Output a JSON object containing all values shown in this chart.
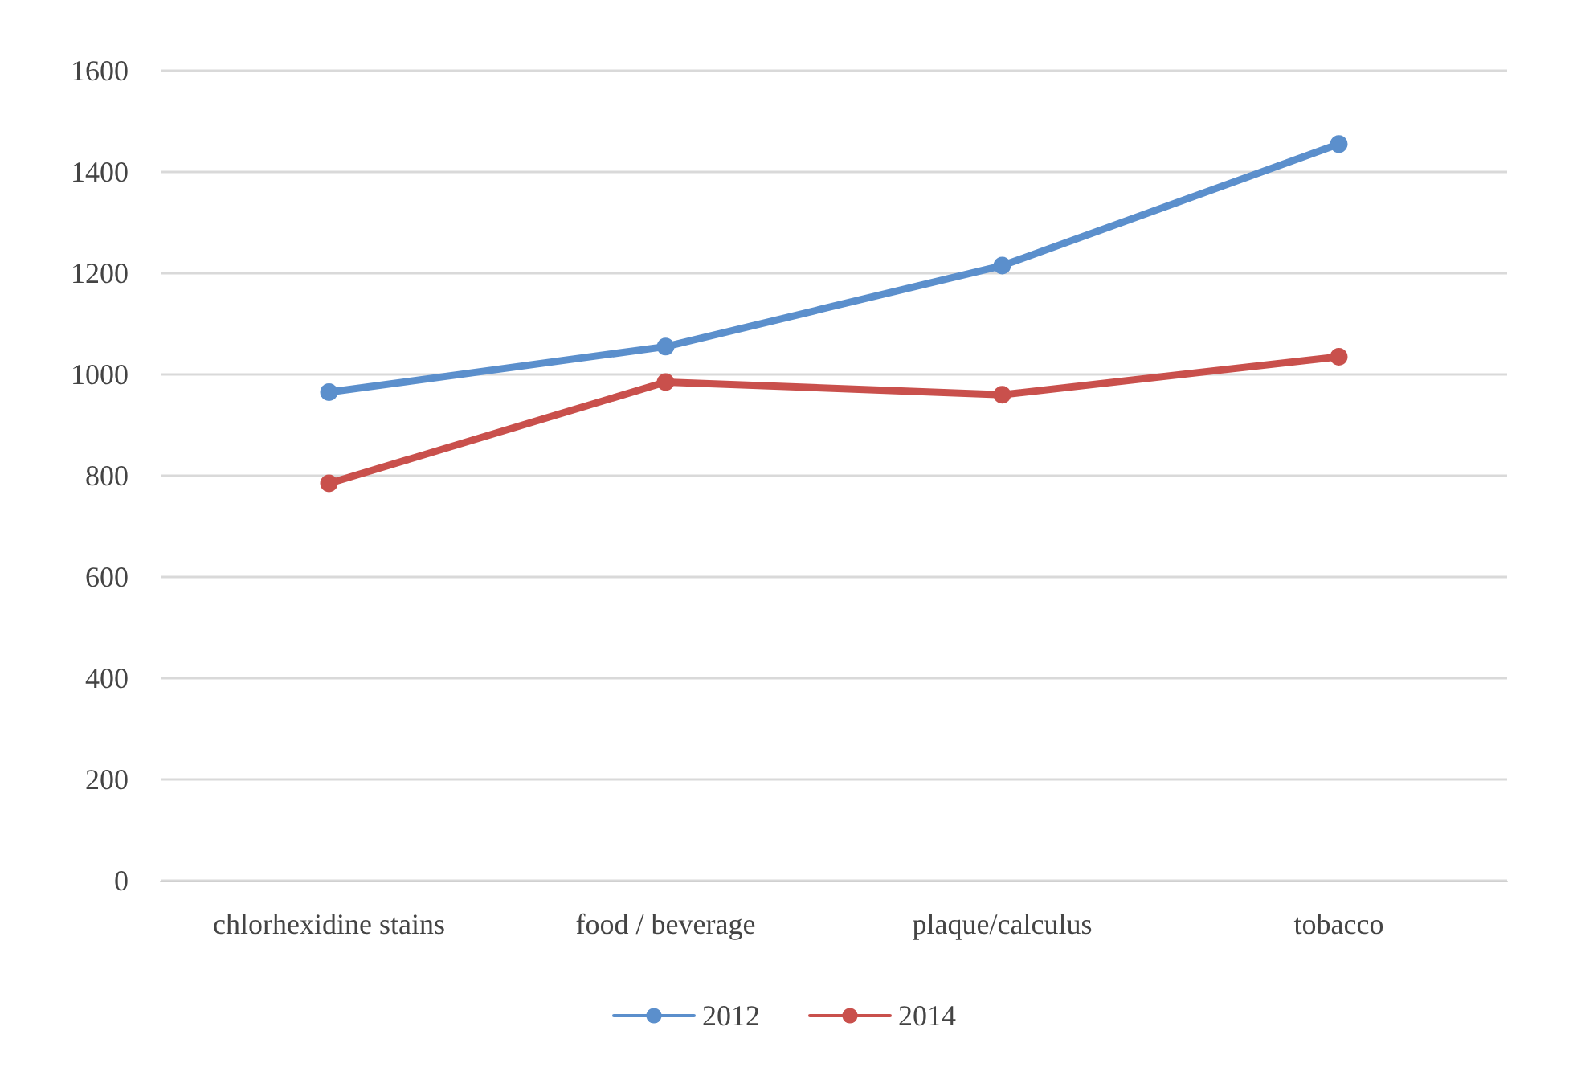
{
  "chart_data": {
    "type": "line",
    "categories": [
      "chlorhexidine stains",
      "food / beverage",
      "plaque/calculus",
      "tobacco"
    ],
    "series": [
      {
        "name": "2012",
        "color": "#5b8fcc",
        "values": [
          965,
          1055,
          1215,
          1455
        ]
      },
      {
        "name": "2014",
        "color": "#c9504c",
        "values": [
          785,
          985,
          960,
          1035
        ]
      }
    ],
    "ylim": [
      0,
      1600
    ],
    "yticks": [
      0,
      200,
      400,
      600,
      800,
      1000,
      1200,
      1400,
      1600
    ],
    "grid": "y",
    "legend": "bottom",
    "marker": "circle",
    "line_style": "solid"
  }
}
